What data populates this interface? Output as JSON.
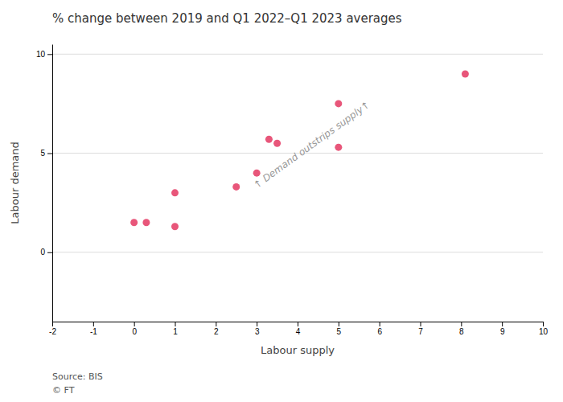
{
  "chart_data": {
    "type": "scatter",
    "title": "% change between 2019 and Q1 2022–Q1 2023 averages",
    "xlabel": "Labour supply",
    "ylabel": "Labour demand",
    "source": [
      "Source: BIS",
      "© FT"
    ],
    "x": [
      0.0,
      0.3,
      1.0,
      1.0,
      2.5,
      3.0,
      3.3,
      3.5,
      5.0,
      5.0,
      8.1
    ],
    "values": [
      1.5,
      1.5,
      3.0,
      1.3,
      3.3,
      4.0,
      5.7,
      5.5,
      7.5,
      5.3,
      9.0
    ],
    "color": "#e8567a",
    "xlim": [
      -2,
      10
    ],
    "ylim": [
      -3.5,
      10.5
    ],
    "xticks": [
      -2,
      -1,
      0,
      1,
      2,
      3,
      4,
      5,
      6,
      7,
      8,
      9,
      10
    ],
    "yticks": [
      0,
      5,
      10
    ],
    "grid": true,
    "annotations": [
      {
        "text": "↑ Demand outstrips supply↑",
        "x": 3.0,
        "y": 3.2
      }
    ]
  }
}
